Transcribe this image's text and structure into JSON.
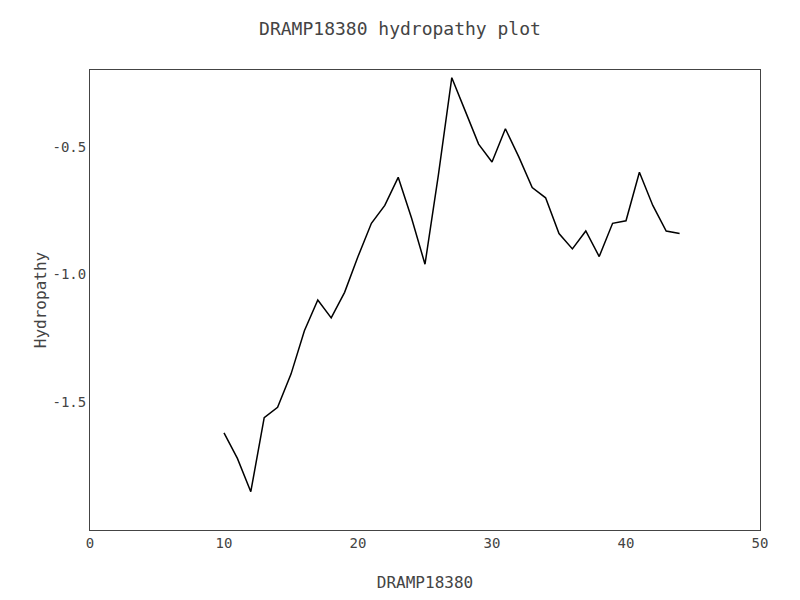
{
  "chart_data": {
    "type": "line",
    "title": "DRAMP18380 hydropathy plot",
    "xlabel": "DRAMP18380",
    "ylabel": "Hydropathy",
    "x": [
      10,
      11,
      12,
      13,
      14,
      15,
      16,
      17,
      18,
      19,
      20,
      21,
      22,
      23,
      24,
      25,
      26,
      27,
      28,
      29,
      30,
      31,
      32,
      33,
      34,
      35,
      36,
      37,
      38,
      39,
      40,
      41,
      42,
      43,
      44
    ],
    "values": [
      -1.62,
      -1.72,
      -1.85,
      -1.56,
      -1.52,
      -1.39,
      -1.22,
      -1.1,
      -1.17,
      -1.07,
      -0.93,
      -0.8,
      -0.73,
      -0.62,
      -0.78,
      -0.96,
      -0.61,
      -0.23,
      -0.36,
      -0.49,
      -0.56,
      -0.43,
      -0.54,
      -0.66,
      -0.7,
      -0.84,
      -0.9,
      -0.83,
      -0.93,
      -0.8,
      -0.79,
      -0.6,
      -0.73,
      -0.83,
      -0.84
    ],
    "color": "black",
    "xlim": [
      0,
      50
    ],
    "xticks": [
      0,
      10,
      20,
      30,
      40,
      50
    ],
    "ylim": [
      -2.0,
      -0.2
    ],
    "yticks": [
      -0.5,
      {
        "value": -1.0,
        "label": "-1.0"
      },
      -1.5
    ],
    "grid": false
  }
}
